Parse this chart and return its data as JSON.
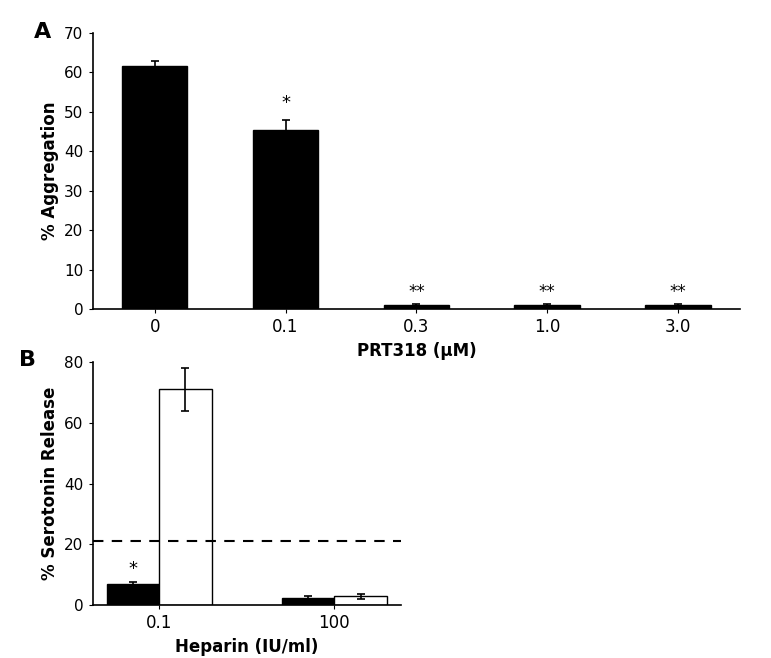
{
  "panel_A": {
    "categories": [
      "0",
      "0.1",
      "0.3",
      "1.0",
      "3.0"
    ],
    "values": [
      61.5,
      45.5,
      1.0,
      1.0,
      1.0
    ],
    "errors": [
      1.5,
      2.5,
      0.3,
      0.3,
      0.3
    ],
    "bar_color": "#000000",
    "bar_width": 0.5,
    "ylabel": "% Aggregation",
    "xlabel": "PRT318 (μM)",
    "ylim": [
      0,
      70
    ],
    "yticks": [
      0,
      10,
      20,
      30,
      40,
      50,
      60,
      70
    ],
    "panel_label": "A"
  },
  "panel_B": {
    "group_labels": [
      "0.1",
      "100"
    ],
    "black_values": [
      7.0,
      2.5
    ],
    "black_errors": [
      0.8,
      0.5
    ],
    "white_values": [
      71.0,
      3.0
    ],
    "white_errors": [
      7.0,
      0.8
    ],
    "bar_width": 0.3,
    "black_color": "#000000",
    "white_color": "#ffffff",
    "white_edgecolor": "#000000",
    "ylabel": "% Serotonin Release",
    "xlabel": "Heparin (IU/ml)",
    "ylim": [
      0,
      80
    ],
    "yticks": [
      0,
      20,
      40,
      60,
      80
    ],
    "dashed_line_y": 21,
    "panel_label": "B"
  },
  "figure_bg": "#ffffff",
  "font_family": "DejaVu Sans"
}
